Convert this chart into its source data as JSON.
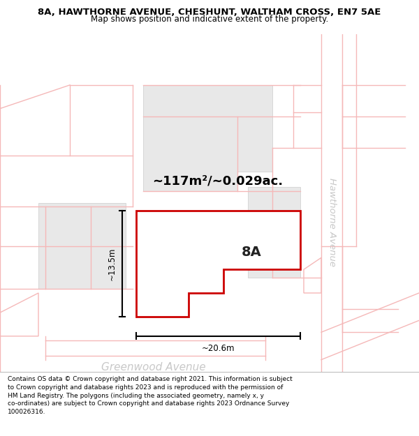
{
  "title_line1": "8A, HAWTHORNE AVENUE, CHESHUNT, WALTHAM CROSS, EN7 5AE",
  "title_line2": "Map shows position and indicative extent of the property.",
  "area_text": "~117m²/~0.029ac.",
  "label_8A": "8A",
  "dim_width": "~20.6m",
  "dim_height": "~13.5m",
  "street_label": "Greenwood Avenue",
  "street_label2": "Hawthorne Avenue",
  "footer_text": "Contains OS data © Crown copyright and database right 2021. This information is subject to Crown copyright and database rights 2023 and is reproduced with the permission of HM Land Registry. The polygons (including the associated geometry, namely x, y co-ordinates) are subject to Crown copyright and database rights 2023 Ordnance Survey 100026316.",
  "bg_color": "#ffffff",
  "plot_color": "#cc0000",
  "plot_fill": "#ffffff",
  "road_color": "#f5b8b8",
  "grey_fill": "#e8e8e8",
  "dim_color": "#000000",
  "street_text_color": "#c8c8c8",
  "title_color": "#000000",
  "footer_color": "#000000",
  "title_fontsize": 9.5,
  "subtitle_fontsize": 8.5,
  "area_fontsize": 13,
  "label_fontsize": 14,
  "dim_fontsize": 8.5,
  "street_fontsize": 11,
  "footer_fontsize": 6.5
}
